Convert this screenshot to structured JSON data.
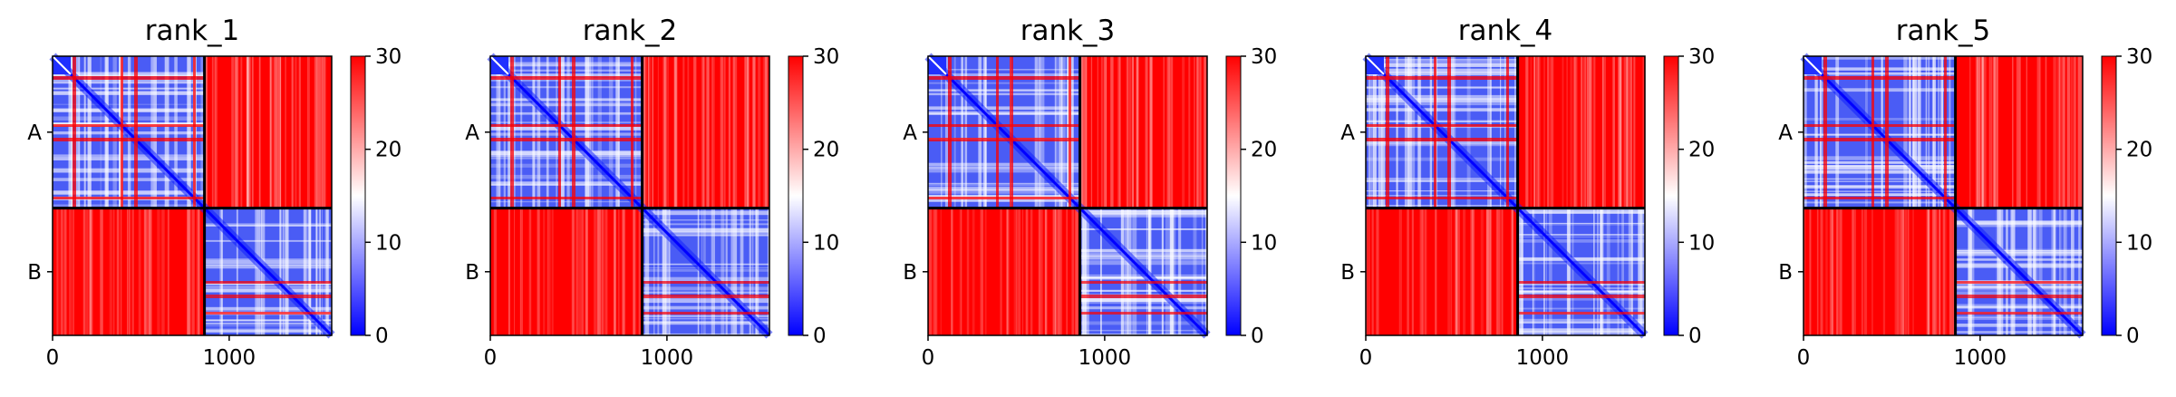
{
  "chart_data": {
    "type": "heatmap",
    "colormap": "bwr",
    "colors": {
      "low": "#0000ff",
      "mid": "#ffffff",
      "high": "#ff0000",
      "divider": "#000000"
    },
    "colorbar": {
      "min": 0,
      "max": 30,
      "ticks": [
        "0",
        "10",
        "20",
        "30"
      ]
    },
    "chains": [
      "A",
      "B"
    ],
    "chain_boundary": 860,
    "total_length": 1580,
    "x_ticks": [
      {
        "value": 0,
        "label": "0"
      },
      {
        "value": 1000,
        "label": "1000"
      }
    ],
    "panels": [
      {
        "title": "rank_1"
      },
      {
        "title": "rank_2"
      },
      {
        "title": "rank_3"
      },
      {
        "title": "rank_4"
      },
      {
        "title": "rank_5"
      }
    ]
  }
}
